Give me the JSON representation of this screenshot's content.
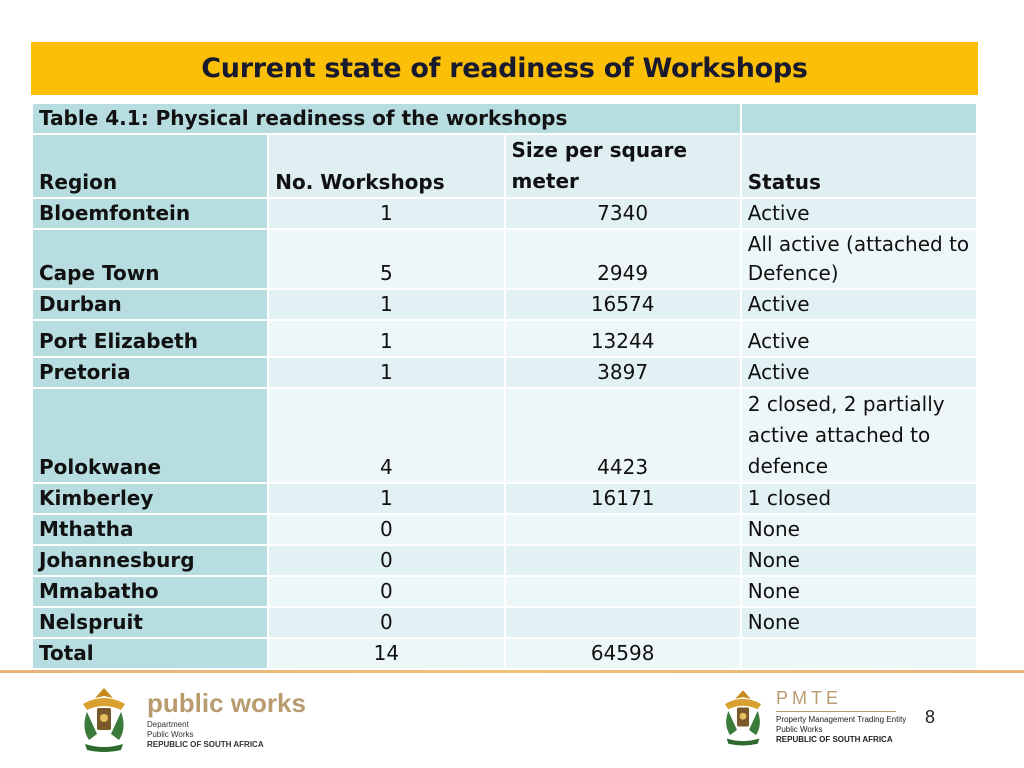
{
  "slide": {
    "title": "Current state of readiness of Workshops",
    "page_number": "8"
  },
  "table": {
    "caption": "Table 4.1: Physical readiness of the workshops",
    "headers": {
      "region": "Region",
      "workshops": "No. Workshops",
      "size": "Size per square meter",
      "status": "Status"
    },
    "rows": [
      {
        "region": "Bloemfontein",
        "workshops": "1",
        "size": "7340",
        "status": "Active"
      },
      {
        "region": "Cape Town",
        "workshops": "5",
        "size": "2949",
        "status": "All active (attached to Defence)"
      },
      {
        "region": "Durban",
        "workshops": "1",
        "size": "16574",
        "status": "Active"
      },
      {
        "region": "Port Elizabeth",
        "workshops": "1",
        "size": "13244",
        "status": "Active"
      },
      {
        "region": "Pretoria",
        "workshops": "1",
        "size": "3897",
        "status": "Active"
      },
      {
        "region": "Polokwane",
        "workshops": "4",
        "size": "4423",
        "status": "2 closed, 2 partially active attached to defence"
      },
      {
        "region": "Kimberley",
        "workshops": "1",
        "size": "16171",
        "status": "1 closed"
      },
      {
        "region": "Mthatha",
        "workshops": "0",
        "size": "",
        "status": "None"
      },
      {
        "region": "Johannesburg",
        "workshops": "0",
        "size": "",
        "status": "None"
      },
      {
        "region": "Mmabatho",
        "workshops": "0",
        "size": "",
        "status": "None"
      },
      {
        "region": "Nelspruit",
        "workshops": "0",
        "size": "",
        "status": "None"
      }
    ],
    "total": {
      "label": "Total",
      "workshops": "14",
      "size": "64598",
      "status": ""
    }
  },
  "footer": {
    "public_works": {
      "logo_text": "public works",
      "lines": [
        "Department",
        "Public Works",
        "REPUBLIC OF SOUTH AFRICA"
      ]
    },
    "pmte": {
      "logo_text": "PMTE",
      "lines": [
        "Property Management Trading Entity",
        "Public Works",
        "REPUBLIC OF SOUTH AFRICA"
      ]
    }
  }
}
